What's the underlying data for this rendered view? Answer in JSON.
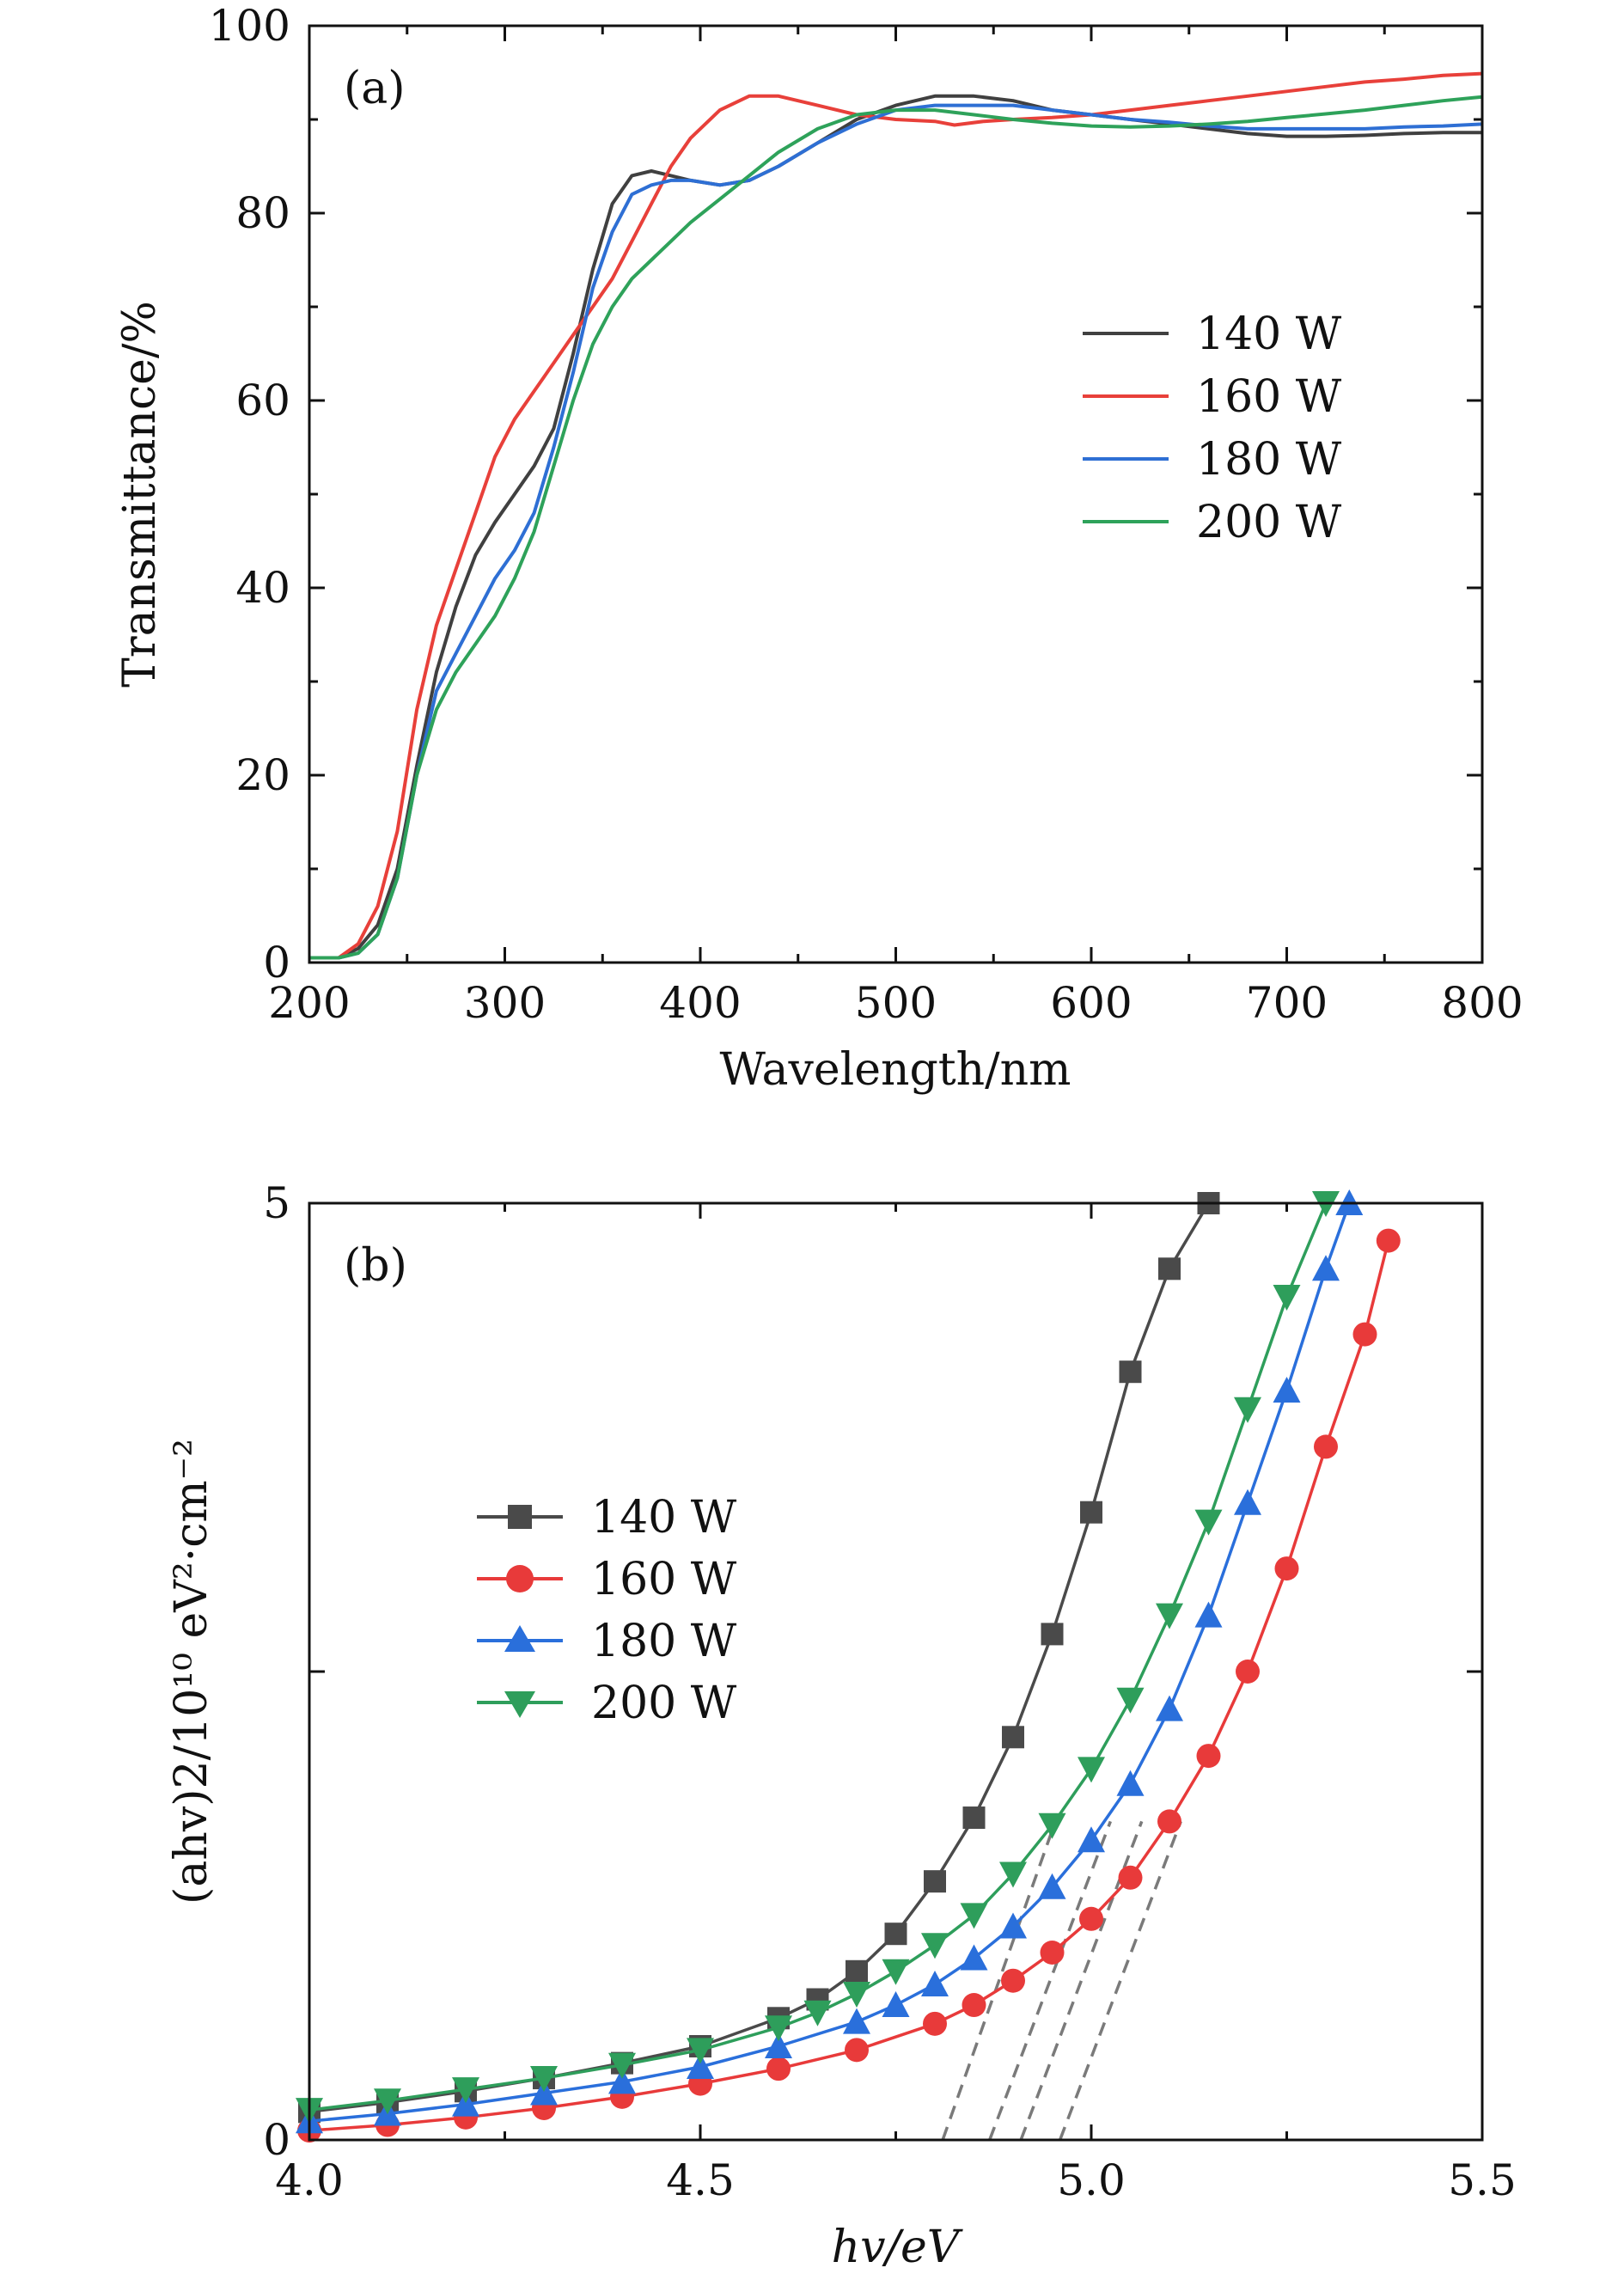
{
  "chart_data": [
    {
      "type": "line",
      "panel_label": "(a)",
      "xlabel": "Wavelength/nm",
      "ylabel": "Transmittance/%",
      "xlim": [
        200,
        800
      ],
      "ylim": [
        0,
        100
      ],
      "xticks": [
        "200",
        "300",
        "400",
        "500",
        "600",
        "700",
        "800"
      ],
      "yticks": [
        "0",
        "20",
        "40",
        "60",
        "80",
        "100"
      ],
      "legend_position": "center-right",
      "series": [
        {
          "name": "140 W",
          "color": "#404040",
          "x": [
            200,
            215,
            225,
            235,
            245,
            255,
            265,
            275,
            285,
            295,
            305,
            315,
            325,
            335,
            345,
            355,
            365,
            375,
            385,
            395,
            410,
            425,
            440,
            460,
            480,
            500,
            520,
            540,
            560,
            580,
            600,
            620,
            640,
            660,
            680,
            700,
            720,
            740,
            760,
            780,
            800
          ],
          "y": [
            0.5,
            0.5,
            1.5,
            4,
            10,
            21,
            31,
            38,
            43.5,
            47,
            50,
            53,
            57,
            65,
            74,
            81,
            84,
            84.5,
            84,
            83.5,
            83,
            83.5,
            85,
            87.5,
            90,
            91.5,
            92.5,
            92.5,
            92,
            91,
            90.5,
            90,
            89.5,
            89,
            88.5,
            88.2,
            88.2,
            88.3,
            88.5,
            88.6,
            88.6
          ]
        },
        {
          "name": "160 W",
          "color": "#e8403a",
          "x": [
            200,
            215,
            225,
            235,
            245,
            255,
            265,
            275,
            285,
            295,
            305,
            315,
            325,
            335,
            345,
            355,
            365,
            375,
            385,
            395,
            410,
            425,
            440,
            460,
            480,
            500,
            520,
            530,
            545,
            560,
            580,
            600,
            620,
            640,
            660,
            680,
            700,
            720,
            740,
            760,
            780,
            800
          ],
          "y": [
            0.5,
            0.5,
            2,
            6,
            14,
            27,
            36,
            42,
            48,
            54,
            58,
            61,
            64,
            67,
            70,
            73,
            77,
            81,
            85,
            88,
            91,
            92.5,
            92.5,
            91.5,
            90.5,
            90,
            89.8,
            89.4,
            89.8,
            90,
            90.2,
            90.5,
            91,
            91.5,
            92,
            92.5,
            93,
            93.5,
            94,
            94.3,
            94.7,
            94.9
          ]
        },
        {
          "name": "180 W",
          "color": "#2e6fd4",
          "x": [
            200,
            215,
            225,
            235,
            245,
            255,
            265,
            275,
            285,
            295,
            305,
            315,
            325,
            335,
            345,
            355,
            365,
            375,
            385,
            395,
            410,
            425,
            440,
            460,
            480,
            500,
            520,
            540,
            560,
            580,
            600,
            620,
            640,
            660,
            680,
            700,
            720,
            740,
            760,
            780,
            800
          ],
          "y": [
            0.5,
            0.5,
            1,
            3,
            9,
            20,
            29,
            33,
            37,
            41,
            44,
            48,
            55,
            63,
            72,
            78,
            82,
            83,
            83.5,
            83.5,
            83,
            83.5,
            85,
            87.5,
            89.5,
            91,
            91.5,
            91.5,
            91.5,
            91,
            90.5,
            90,
            89.7,
            89.3,
            89,
            89,
            89,
            89,
            89.2,
            89.3,
            89.5
          ]
        },
        {
          "name": "200 W",
          "color": "#2ea25a",
          "x": [
            200,
            215,
            225,
            235,
            245,
            255,
            265,
            275,
            285,
            295,
            305,
            315,
            325,
            335,
            345,
            355,
            365,
            375,
            385,
            395,
            410,
            425,
            440,
            460,
            480,
            500,
            520,
            540,
            560,
            580,
            600,
            620,
            640,
            660,
            680,
            700,
            720,
            740,
            760,
            780,
            800
          ],
          "y": [
            0.5,
            0.5,
            1,
            3,
            9,
            20,
            27,
            31,
            34,
            37,
            41,
            46,
            53,
            60,
            66,
            70,
            73,
            75,
            77,
            79,
            81.5,
            84,
            86.5,
            89,
            90.5,
            91,
            91,
            90.5,
            90,
            89.6,
            89.3,
            89.2,
            89.3,
            89.5,
            89.8,
            90.2,
            90.6,
            91,
            91.5,
            92,
            92.4
          ]
        }
      ]
    },
    {
      "type": "scatter",
      "panel_label": "(b)",
      "xlabel": "hv/eV",
      "ylabel": "(ahv)2/10¹⁰ eV²·cm⁻²",
      "xlim": [
        4.0,
        5.5
      ],
      "ylim": [
        0,
        5
      ],
      "xticks": [
        "4.0",
        "4.5",
        "5.0",
        "5.5"
      ],
      "yticks": [
        "0",
        "5"
      ],
      "legend_position": "upper-left",
      "series": [
        {
          "name": "140 W",
          "color": "#4a4a4a",
          "marker": "square",
          "x": [
            4.0,
            4.1,
            4.2,
            4.3,
            4.4,
            4.5,
            4.6,
            4.65,
            4.7,
            4.75,
            4.8,
            4.85,
            4.9,
            4.95,
            5.0,
            5.05,
            5.1,
            5.15
          ],
          "y": [
            0.15,
            0.2,
            0.26,
            0.33,
            0.41,
            0.5,
            0.65,
            0.75,
            0.9,
            1.1,
            1.38,
            1.72,
            2.15,
            2.7,
            3.35,
            4.1,
            4.65,
            5.0
          ]
        },
        {
          "name": "160 W",
          "color": "#e83a3a",
          "marker": "circle",
          "x": [
            4.0,
            4.1,
            4.2,
            4.3,
            4.4,
            4.5,
            4.6,
            4.7,
            4.8,
            4.85,
            4.9,
            4.95,
            5.0,
            5.05,
            5.1,
            5.15,
            5.2,
            5.25,
            5.3,
            5.35,
            5.38
          ],
          "y": [
            0.05,
            0.08,
            0.12,
            0.17,
            0.23,
            0.3,
            0.38,
            0.48,
            0.62,
            0.72,
            0.85,
            1.0,
            1.18,
            1.4,
            1.7,
            2.05,
            2.5,
            3.05,
            3.7,
            4.3,
            4.8
          ]
        },
        {
          "name": "180 W",
          "color": "#2a6fdb",
          "marker": "triangle-up",
          "x": [
            4.0,
            4.1,
            4.2,
            4.3,
            4.4,
            4.5,
            4.6,
            4.7,
            4.75,
            4.8,
            4.85,
            4.9,
            4.95,
            5.0,
            5.05,
            5.1,
            5.15,
            5.2,
            5.25,
            5.3,
            5.33
          ],
          "y": [
            0.1,
            0.14,
            0.19,
            0.25,
            0.31,
            0.39,
            0.5,
            0.63,
            0.72,
            0.83,
            0.97,
            1.14,
            1.35,
            1.6,
            1.9,
            2.3,
            2.8,
            3.4,
            4.0,
            4.65,
            5.0
          ]
        },
        {
          "name": "200 W",
          "color": "#2e9e5b",
          "marker": "triangle-down",
          "x": [
            4.0,
            4.1,
            4.2,
            4.3,
            4.4,
            4.5,
            4.6,
            4.65,
            4.7,
            4.75,
            4.8,
            4.85,
            4.9,
            4.95,
            5.0,
            5.05,
            5.1,
            5.15,
            5.2,
            5.25,
            5.3
          ],
          "y": [
            0.16,
            0.21,
            0.27,
            0.33,
            0.4,
            0.48,
            0.6,
            0.68,
            0.78,
            0.9,
            1.04,
            1.2,
            1.42,
            1.68,
            1.98,
            2.35,
            2.8,
            3.3,
            3.9,
            4.5,
            5.0
          ]
        }
      ],
      "tangent_lines": [
        {
          "series": "140 W",
          "x_intercept": 4.81,
          "slope": 11.8
        },
        {
          "series": "200 W",
          "x_intercept": 4.87,
          "slope": 11.0
        },
        {
          "series": "180 W",
          "x_intercept": 4.91,
          "slope": 11.0
        },
        {
          "series": "160 W",
          "x_intercept": 4.96,
          "slope": 11.0
        }
      ]
    }
  ]
}
